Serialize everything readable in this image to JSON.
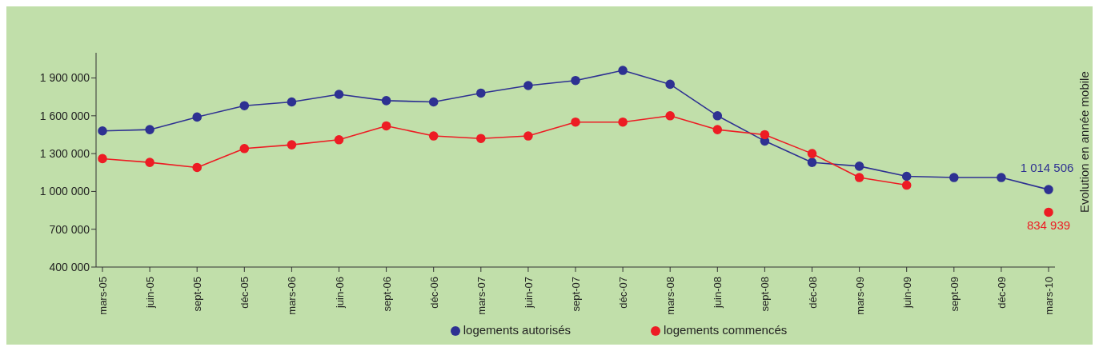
{
  "chart_data": {
    "type": "line",
    "categories": [
      "mars-05",
      "juin-05",
      "sept-05",
      "déc-05",
      "mars-06",
      "juin-06",
      "sept-06",
      "déc-06",
      "mars-07",
      "juin-07",
      "sept-07",
      "déc-07",
      "mars-08",
      "juin-08",
      "sept-08",
      "déc-08",
      "mars-09",
      "juin-09",
      "sept-09",
      "déc-09",
      "mars-10"
    ],
    "series": [
      {
        "name": "logements autorisés",
        "color": "#2e3192",
        "values": [
          1480000,
          1490000,
          1590000,
          1680000,
          1710000,
          1770000,
          1720000,
          1710000,
          1780000,
          1840000,
          1880000,
          1960000,
          1850000,
          1600000,
          1400000,
          1230000,
          1200000,
          1120000,
          1110000,
          1110000,
          1014506
        ],
        "value_labels": [
          null,
          null,
          null,
          null,
          null,
          null,
          null,
          null,
          null,
          null,
          null,
          null,
          null,
          null,
          null,
          null,
          null,
          null,
          null,
          null,
          "1 014 506"
        ]
      },
      {
        "name": "logements commencés",
        "color": "#ed1c24",
        "values": [
          1260000,
          1230000,
          1190000,
          1340000,
          1370000,
          1410000,
          1520000,
          1440000,
          1420000,
          1440000,
          1550000,
          1550000,
          1600000,
          1490000,
          1450000,
          1300000,
          1110000,
          1050000,
          null,
          null,
          834939
        ],
        "value_labels": [
          null,
          null,
          null,
          null,
          null,
          null,
          null,
          null,
          null,
          null,
          null,
          null,
          null,
          null,
          null,
          null,
          null,
          null,
          null,
          null,
          "834 939"
        ]
      }
    ],
    "ylim": [
      400000,
      2100000
    ],
    "yticks": [
      {
        "value": 400000,
        "label": "400 000"
      },
      {
        "value": 700000,
        "label": "700 000"
      },
      {
        "value": 1000000,
        "label": "1 000 000"
      },
      {
        "value": 1300000,
        "label": "1 300 000"
      },
      {
        "value": 1600000,
        "label": "1 600 000"
      },
      {
        "value": 1900000,
        "label": "1 900 000"
      }
    ],
    "y2label": "Evolution en année mobile",
    "grid": false,
    "legend": "bottom",
    "marker": "circle",
    "line_style": "solid"
  }
}
